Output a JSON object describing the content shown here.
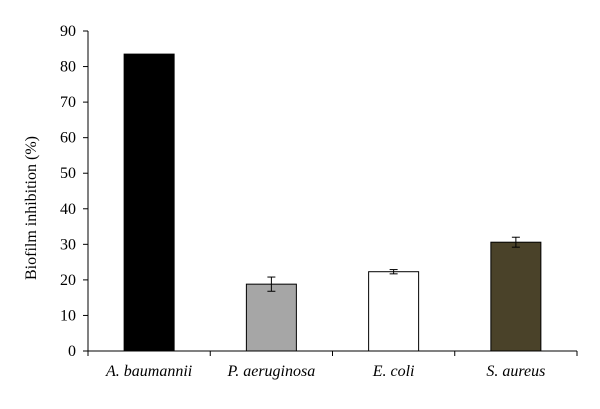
{
  "chart_data": {
    "type": "bar",
    "title": "",
    "xlabel": "",
    "ylabel": "Biofilm inhibition (%)",
    "ylim": [
      0,
      90
    ],
    "yticks": [
      0,
      10,
      20,
      30,
      40,
      50,
      60,
      70,
      80,
      90
    ],
    "categories": [
      "A. baumannii",
      "P. aeruginosa",
      "E. coli",
      "S. aureus"
    ],
    "values": [
      83.5,
      18.8,
      22.3,
      30.6
    ],
    "errors": [
      0.0,
      2.0,
      0.6,
      1.4
    ],
    "bar_colors": [
      "#000000",
      "#a6a6a6",
      "#ffffff",
      "#4a4229"
    ],
    "bar_border": "#000000",
    "grid": false,
    "legend": "none"
  }
}
